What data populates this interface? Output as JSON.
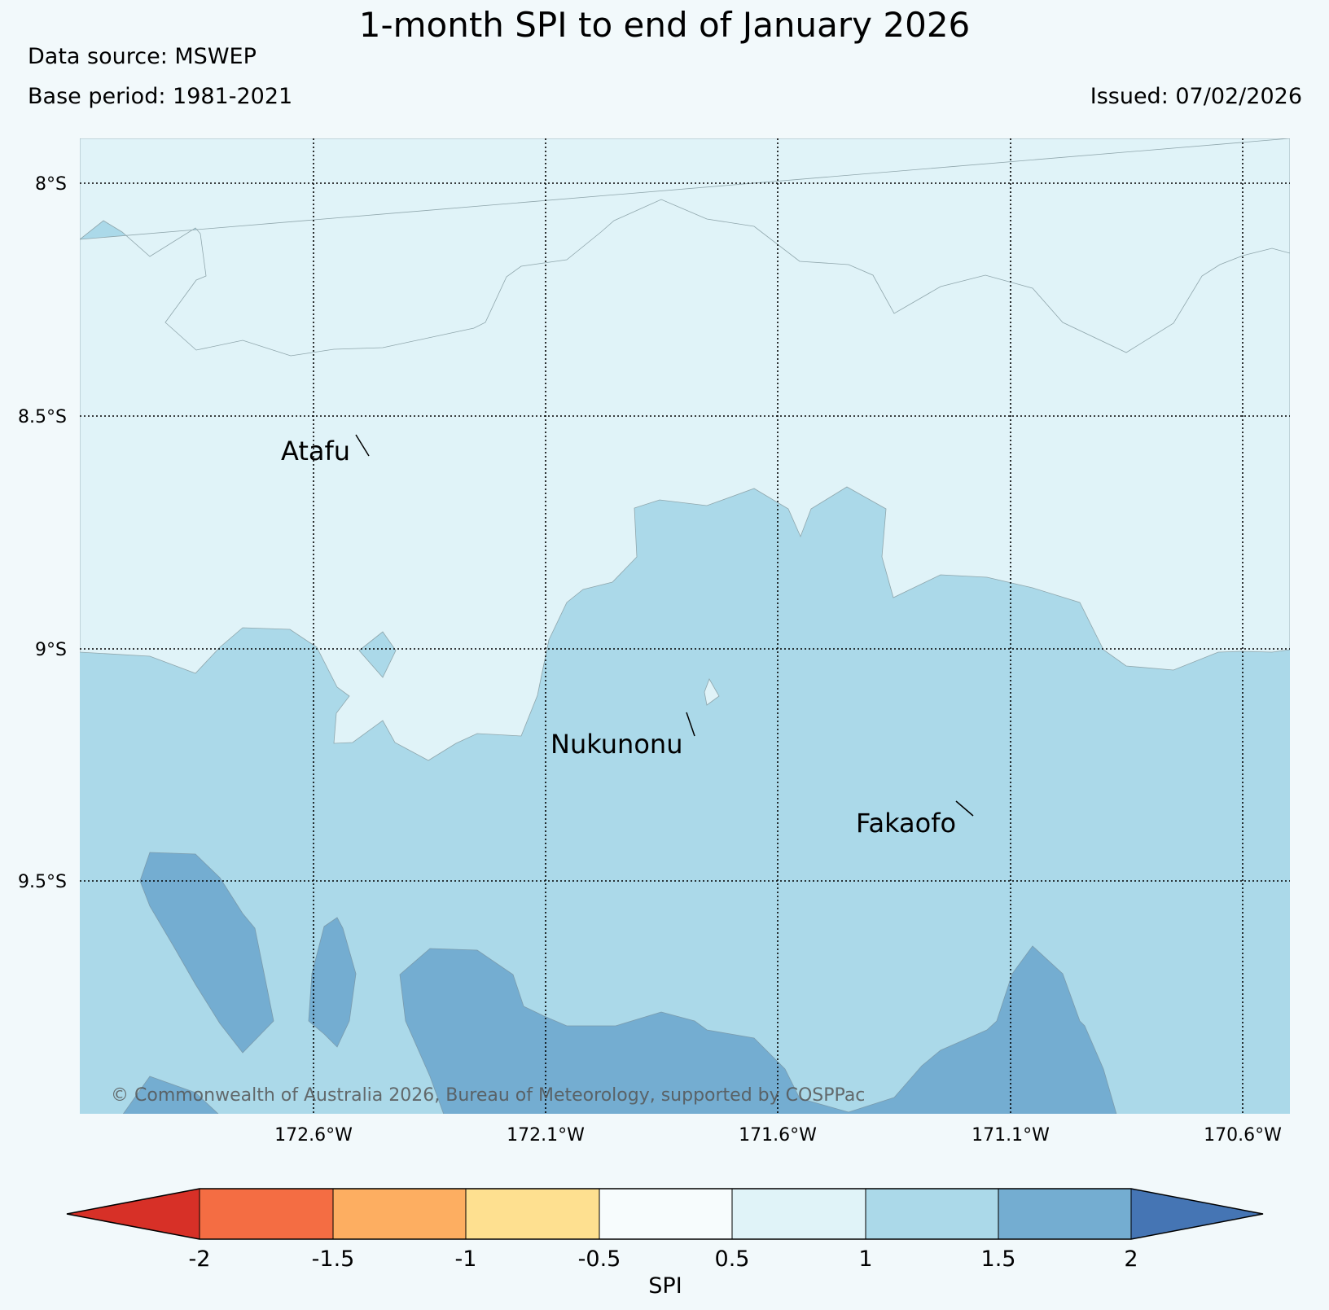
{
  "header": {
    "title": "1-month SPI to end of January 2026",
    "data_source": "Data source: MSWEP",
    "base_period": "Base period: 1981-2021",
    "issued": "Issued: 07/02/2026"
  },
  "map": {
    "lat_labels": [
      "8°S",
      "8.5°S",
      "9°S",
      "9.5°S"
    ],
    "lon_labels": [
      "172.6°W",
      "172.1°W",
      "171.6°W",
      "171.1°W",
      "170.6°W"
    ],
    "places": [
      {
        "name": "Atafu"
      },
      {
        "name": "Nukunonu"
      },
      {
        "name": "Fakaofo"
      }
    ],
    "copyright": "© Commonwealth of Australia 2026, Bureau of Meteorology, supported by COSPPac",
    "region_colors": {
      "spi_0_5_to_1": "#e0f3f8",
      "spi_1_to_1_5": "#abd9e9",
      "spi_1_5_to_2": "#74add1"
    }
  },
  "colorbar": {
    "label": "SPI",
    "ticks": [
      "-2",
      "-1.5",
      "-1",
      "-0.5",
      "0.5",
      "1",
      "1.5",
      "2"
    ],
    "colors": [
      "#d73027",
      "#f46d43",
      "#fdae61",
      "#fee090",
      "#f7fcfd",
      "#e0f3f8",
      "#abd9e9",
      "#74add1",
      "#4575b4"
    ]
  }
}
